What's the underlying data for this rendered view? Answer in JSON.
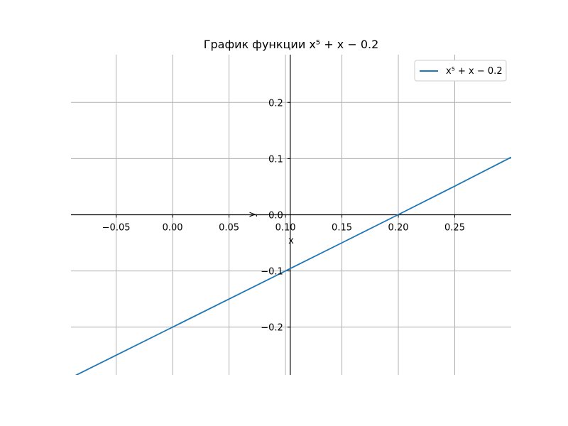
{
  "chart_data": {
    "type": "line",
    "title": "График функции x⁵ + x − 0.2",
    "xlabel": "x",
    "ylabel": "y",
    "xlim": [
      -0.09,
      0.3
    ],
    "ylim": [
      -0.285,
      0.285
    ],
    "xticks": [
      -0.05,
      0.0,
      0.05,
      0.1,
      0.15,
      0.2,
      0.25
    ],
    "xtick_labels": [
      "−0.05",
      "0.00",
      "0.05",
      "0.10",
      "0.15",
      "0.20",
      "0.25"
    ],
    "yticks": [
      -0.2,
      -0.1,
      0.0,
      0.1,
      0.2
    ],
    "ytick_labels": [
      "−0.2",
      "−0.1",
      "0.0",
      "0.1",
      "0.2"
    ],
    "grid": true,
    "legend_position": "top-right",
    "series": [
      {
        "name": "x⁵ + x − 0.2",
        "color": "#1f77b4",
        "x": [
          -0.09,
          -0.05,
          0.0,
          0.05,
          0.1,
          0.15,
          0.2,
          0.25,
          0.3
        ],
        "y": [
          -0.29,
          -0.25,
          -0.2,
          -0.15,
          -0.09999,
          -0.04992,
          0.00032,
          0.05098,
          0.10243
        ]
      }
    ]
  }
}
